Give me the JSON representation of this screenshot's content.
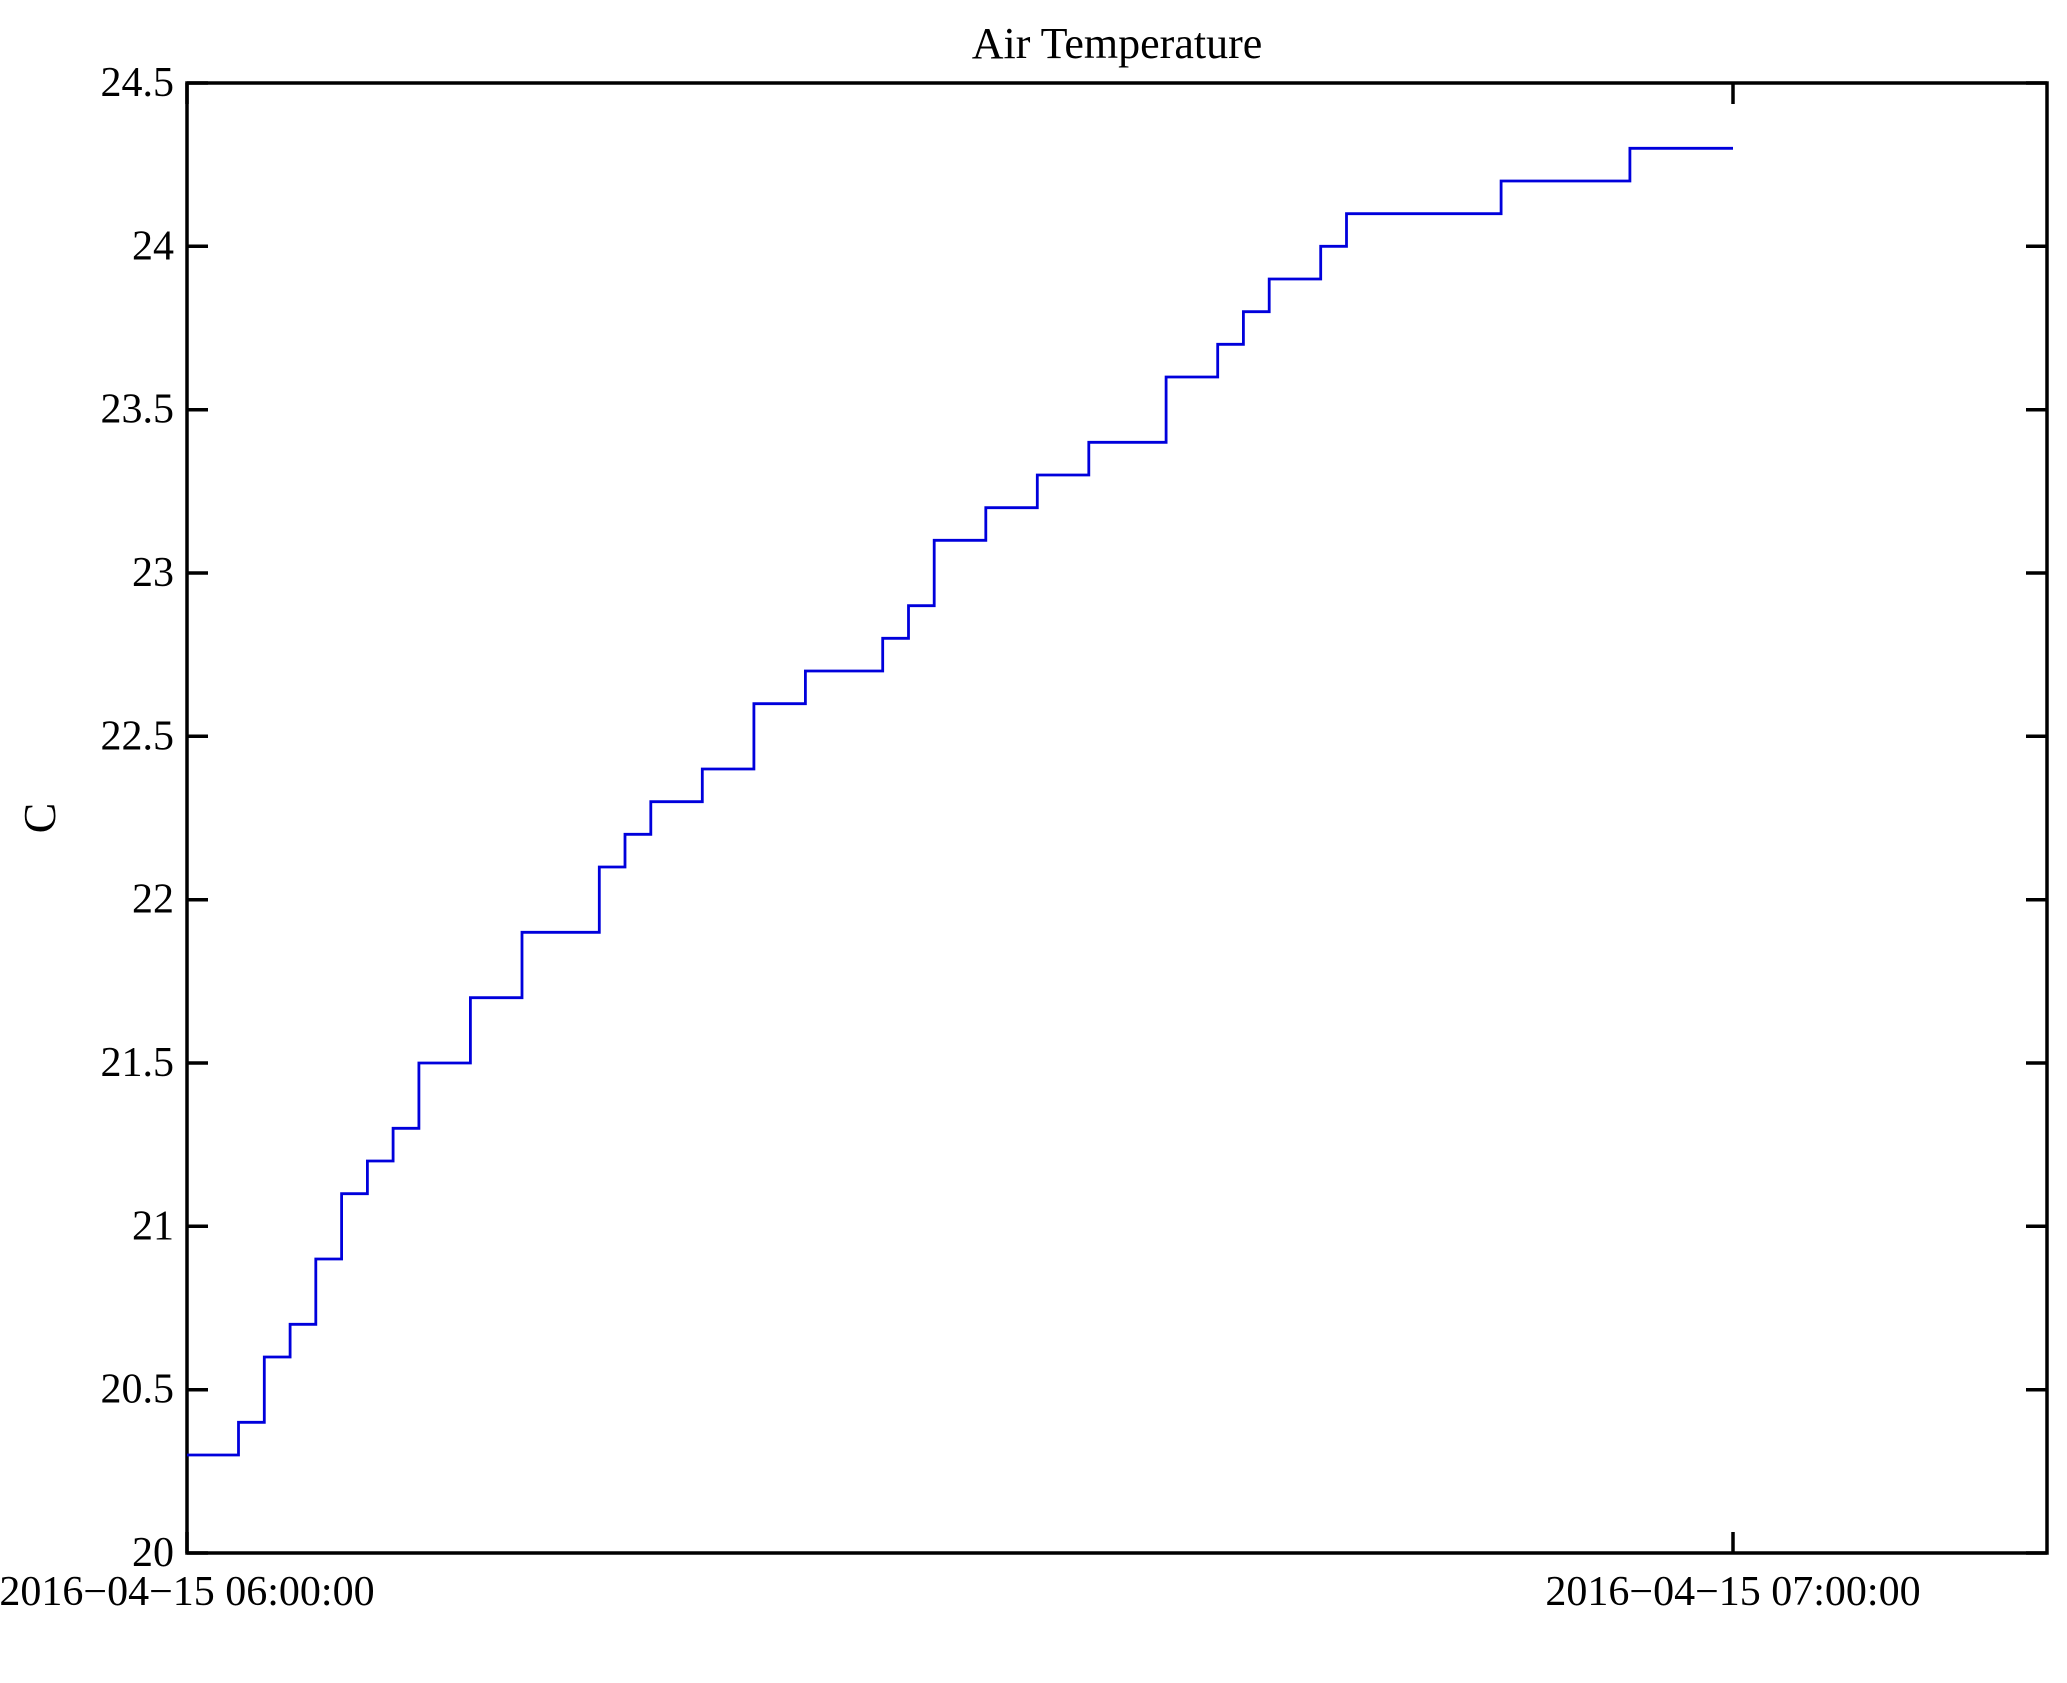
{
  "chart_data": {
    "type": "line",
    "step": true,
    "title": "Air Temperature",
    "ylabel": "C",
    "xlabel": "",
    "ylim": [
      20,
      24.5
    ],
    "yticks": [
      20,
      20.5,
      21,
      21.5,
      22,
      22.5,
      23,
      23.5,
      24,
      24.5
    ],
    "ytick_labels": [
      "20",
      "20.5",
      "21",
      "21.5",
      "22",
      "22.5",
      "23",
      "23.5",
      "24",
      "24.5"
    ],
    "xtick_labels": [
      "2016−04−15 06:00:00",
      "2016−04−15 07:00:00"
    ],
    "xtick_minutes": [
      0,
      60
    ],
    "grid": false,
    "legend": null,
    "line_color": "#0000DC",
    "axis_color": "#000000",
    "x_start": "2016-04-15 06:00:00",
    "x_step_minutes": 1,
    "times": [
      "06:00",
      "06:01",
      "06:02",
      "06:03",
      "06:04",
      "06:05",
      "06:06",
      "06:07",
      "06:08",
      "06:09",
      "06:10",
      "06:11",
      "06:12",
      "06:13",
      "06:14",
      "06:15",
      "06:16",
      "06:17",
      "06:18",
      "06:19",
      "06:20",
      "06:21",
      "06:22",
      "06:23",
      "06:24",
      "06:25",
      "06:26",
      "06:27",
      "06:28",
      "06:29",
      "06:30",
      "06:31",
      "06:32",
      "06:33",
      "06:34",
      "06:35",
      "06:36",
      "06:37",
      "06:38",
      "06:39",
      "06:40",
      "06:41",
      "06:42",
      "06:43",
      "06:44",
      "06:45",
      "06:46",
      "06:47",
      "06:48",
      "06:49",
      "06:50",
      "06:51",
      "06:52",
      "06:53",
      "06:54",
      "06:55",
      "06:56",
      "06:57",
      "06:58",
      "06:59",
      "07:00"
    ],
    "values": [
      20.3,
      20.3,
      20.4,
      20.6,
      20.7,
      20.9,
      21.1,
      21.2,
      21.3,
      21.5,
      21.5,
      21.7,
      21.7,
      21.9,
      21.9,
      21.9,
      22.1,
      22.2,
      22.3,
      22.3,
      22.4,
      22.4,
      22.6,
      22.6,
      22.7,
      22.7,
      22.7,
      22.8,
      22.9,
      23.1,
      23.1,
      23.2,
      23.2,
      23.3,
      23.3,
      23.4,
      23.4,
      23.4,
      23.6,
      23.6,
      23.7,
      23.8,
      23.9,
      23.9,
      24.0,
      24.1,
      24.1,
      24.1,
      24.1,
      24.1,
      24.1,
      24.2,
      24.2,
      24.2,
      24.2,
      24.2,
      24.3,
      24.3,
      24.3,
      24.3,
      24.3
    ]
  }
}
